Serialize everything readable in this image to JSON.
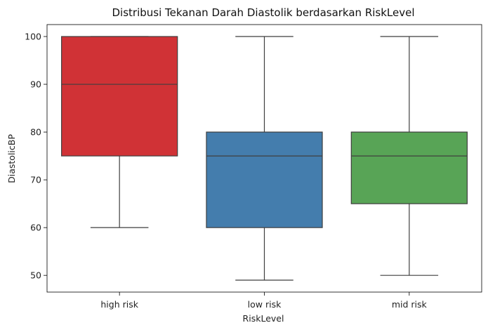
{
  "chart_data": {
    "type": "boxplot",
    "title": "Distribusi Tekanan Darah Diastolik berdasarkan RiskLevel",
    "xlabel": "RiskLevel",
    "ylabel": "DiastolicBP",
    "ylim": [
      46.5,
      102.5
    ],
    "yticks": [
      50,
      60,
      70,
      80,
      90,
      100
    ],
    "ytick_labels": [
      "50",
      "60",
      "70",
      "80",
      "90",
      "100"
    ],
    "grid": false,
    "categories": [
      "high risk",
      "low risk",
      "mid risk"
    ],
    "boxes": [
      {
        "name": "high risk",
        "whisker_low": 60,
        "q1": 75,
        "median": 90,
        "q3": 100,
        "whisker_high": 100,
        "color": "#d03236"
      },
      {
        "name": "low risk",
        "whisker_low": 49,
        "q1": 60,
        "median": 75,
        "q3": 80,
        "whisker_high": 100,
        "color": "#447dad"
      },
      {
        "name": "mid risk",
        "whisker_low": 50,
        "q1": 65,
        "median": 75,
        "q3": 80,
        "whisker_high": 100,
        "color": "#58a456"
      }
    ],
    "line_color": "#3f3f3f"
  }
}
